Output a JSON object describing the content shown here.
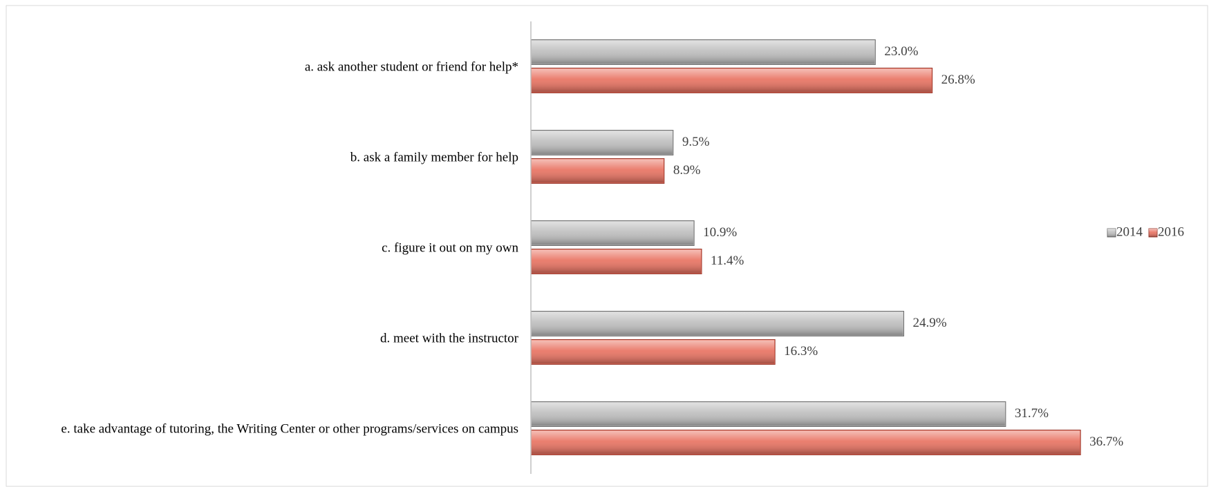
{
  "chart_data": {
    "type": "hbar",
    "categories": [
      "a. ask another student or friend for help*",
      "b. ask a family member for help",
      "c. figure it out on my own",
      "d. meet with the instructor",
      "e. take advantage of tutoring, the Writing Center or other programs/services on campus"
    ],
    "series": [
      {
        "name": "2014",
        "color": "#bdbdbd",
        "values": [
          23.0,
          9.5,
          10.9,
          24.9,
          31.7
        ],
        "value_labels": [
          "23.0%",
          "9.5%",
          "10.9%",
          "24.9%",
          "31.7%"
        ]
      },
      {
        "name": "2016",
        "color": "#e8705f",
        "values": [
          26.8,
          8.9,
          11.4,
          16.3,
          36.7
        ],
        "value_labels": [
          "26.8%",
          "8.9%",
          "11.4%",
          "16.3%",
          "36.7%"
        ]
      }
    ],
    "xlim": [
      0,
      45
    ],
    "legend": "right"
  }
}
